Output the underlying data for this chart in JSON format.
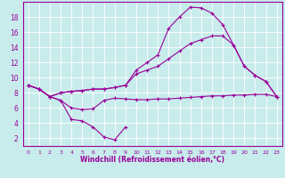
{
  "title": "",
  "xlabel": "Windchill (Refroidissement éolien,°C)",
  "ylabel": "",
  "bg_color": "#c8ecec",
  "line_color": "#990099",
  "grid_color": "#ffffff",
  "xlim": [
    -0.5,
    23.5
  ],
  "ylim": [
    1,
    20
  ],
  "xticks": [
    0,
    1,
    2,
    3,
    4,
    5,
    6,
    7,
    8,
    9,
    10,
    11,
    12,
    13,
    14,
    15,
    16,
    17,
    18,
    19,
    20,
    21,
    22,
    23
  ],
  "yticks": [
    2,
    4,
    6,
    8,
    10,
    12,
    14,
    16,
    18
  ],
  "series": [
    [
      9.0,
      8.5,
      7.5,
      8.0,
      8.2,
      8.3,
      8.5,
      8.5,
      8.7,
      9.0,
      11.0,
      12.0,
      13.0,
      16.5,
      18.0,
      19.3,
      19.2,
      18.5,
      17.0,
      14.3,
      11.5,
      10.3,
      9.5,
      7.5
    ],
    [
      9.0,
      8.5,
      7.5,
      8.0,
      8.2,
      8.3,
      8.5,
      8.5,
      8.7,
      9.0,
      10.5,
      11.0,
      11.5,
      12.5,
      13.5,
      14.5,
      15.0,
      15.5,
      15.5,
      14.3,
      11.5,
      10.3,
      9.5,
      7.5
    ],
    [
      9.0,
      8.5,
      7.5,
      7.0,
      6.0,
      5.8,
      5.9,
      7.0,
      7.3,
      7.2,
      7.1,
      7.1,
      7.2,
      7.2,
      7.3,
      7.4,
      7.5,
      7.6,
      7.6,
      7.7,
      7.7,
      7.8,
      7.8,
      7.5
    ],
    [
      9.0,
      8.5,
      7.5,
      7.0,
      4.5,
      4.3,
      3.5,
      2.2,
      1.8,
      3.5,
      null,
      null,
      null,
      null,
      null,
      null,
      null,
      null,
      null,
      null,
      null,
      null,
      null,
      null
    ]
  ]
}
